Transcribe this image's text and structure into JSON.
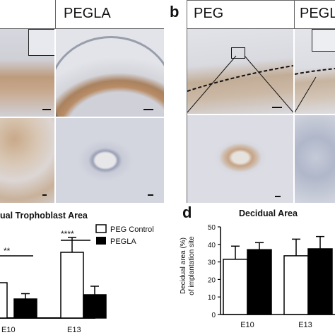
{
  "panels": {
    "a": {
      "letter": "",
      "header_left": "",
      "header_right": "PEGLA"
    },
    "b": {
      "letter": "b",
      "header_left": "PEG",
      "header_right": "PEGLA"
    }
  },
  "chart_c": {
    "letter": "",
    "title": "ual Trophoblast Area",
    "legend": [
      "PEG Control",
      "PEGLA"
    ],
    "categories": [
      "E10",
      "E13"
    ],
    "significance": [
      "**",
      "****"
    ]
  },
  "chart_d": {
    "letter": "d",
    "title": "Decidual Area",
    "ylabel_line1": "Decidual area (%)",
    "ylabel_line2": "of implantation site",
    "yticks": [
      "0",
      "10",
      "20",
      "30",
      "40",
      "50"
    ],
    "categories": [
      "E10",
      "E13"
    ]
  },
  "chart_data": [
    {
      "type": "bar",
      "title": "ual Trophoblast Area",
      "categories": [
        "E10",
        "E13"
      ],
      "series": [
        {
          "name": "PEG Control",
          "values": [
            null,
            0.62
          ]
        },
        {
          "name": "PEGLA",
          "values": [
            0.18,
            0.22
          ]
        }
      ],
      "errors": [
        [
          null,
          0.14
        ],
        [
          0.05,
          0.08
        ]
      ],
      "significance": [
        "**",
        "****"
      ],
      "legend": "top-right"
    },
    {
      "type": "bar",
      "title": "Decidual Area",
      "ylabel": "Decidual area (%) of implantation site",
      "categories": [
        "E10",
        "E13"
      ],
      "ylim": [
        0,
        50
      ],
      "yticks": [
        0,
        10,
        20,
        30,
        40,
        50
      ],
      "series": [
        {
          "name": "PEG Control",
          "values": [
            31.5,
            33.5
          ]
        },
        {
          "name": "PEGLA",
          "values": [
            37,
            37.5
          ]
        }
      ],
      "errors": [
        [
          7.5,
          9.5
        ],
        [
          4,
          7
        ]
      ]
    }
  ],
  "colors": {
    "stain_brown": "#b28b6a",
    "tissue_bg": "#d6d7df",
    "series_control": "#ffffff",
    "series_pegla": "#000000"
  }
}
